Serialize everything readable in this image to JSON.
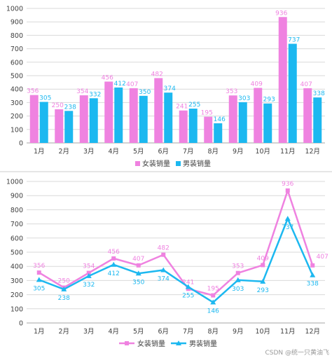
{
  "watermark": "CSDN @统一只黄油飞",
  "colors": {
    "female": "#ef82e0",
    "male": "#1cb8f0",
    "grid": "#d9d9d9",
    "axis": "#a6a6a6",
    "text": "#404040"
  },
  "chart_data": [
    {
      "type": "bar",
      "categories": [
        "1月",
        "2月",
        "3月",
        "4月",
        "5月",
        "6月",
        "7月",
        "8月",
        "9月",
        "10月",
        "11月",
        "12月"
      ],
      "series": [
        {
          "name": "女装销量",
          "values": [
            356,
            250,
            354,
            456,
            407,
            482,
            241,
            195,
            353,
            409,
            936,
            407
          ]
        },
        {
          "name": "男装销量",
          "values": [
            305,
            238,
            332,
            412,
            350,
            374,
            255,
            146,
            303,
            293,
            737,
            338
          ]
        }
      ],
      "yticks": [
        0,
        100,
        200,
        300,
        400,
        500,
        600,
        700,
        800,
        900,
        1000
      ],
      "ylim": [
        0,
        1000
      ],
      "grid": true,
      "legend": "bottom",
      "data_labels": true
    },
    {
      "type": "line",
      "categories": [
        "1月",
        "2月",
        "3月",
        "4月",
        "5月",
        "6月",
        "7月",
        "8月",
        "9月",
        "10月",
        "11月",
        "12月"
      ],
      "series": [
        {
          "name": "女装销量",
          "values": [
            356,
            250,
            354,
            456,
            407,
            482,
            241,
            195,
            353,
            409,
            936,
            407
          ],
          "marker": "square"
        },
        {
          "name": "男装销量",
          "values": [
            305,
            238,
            332,
            412,
            350,
            374,
            255,
            146,
            303,
            293,
            737,
            338
          ],
          "marker": "triangle"
        }
      ],
      "yticks": [
        0,
        100,
        200,
        300,
        400,
        500,
        600,
        700,
        800,
        900,
        1000
      ],
      "ylim": [
        0,
        1000
      ],
      "grid": true,
      "legend": "bottom",
      "data_labels": true
    }
  ]
}
